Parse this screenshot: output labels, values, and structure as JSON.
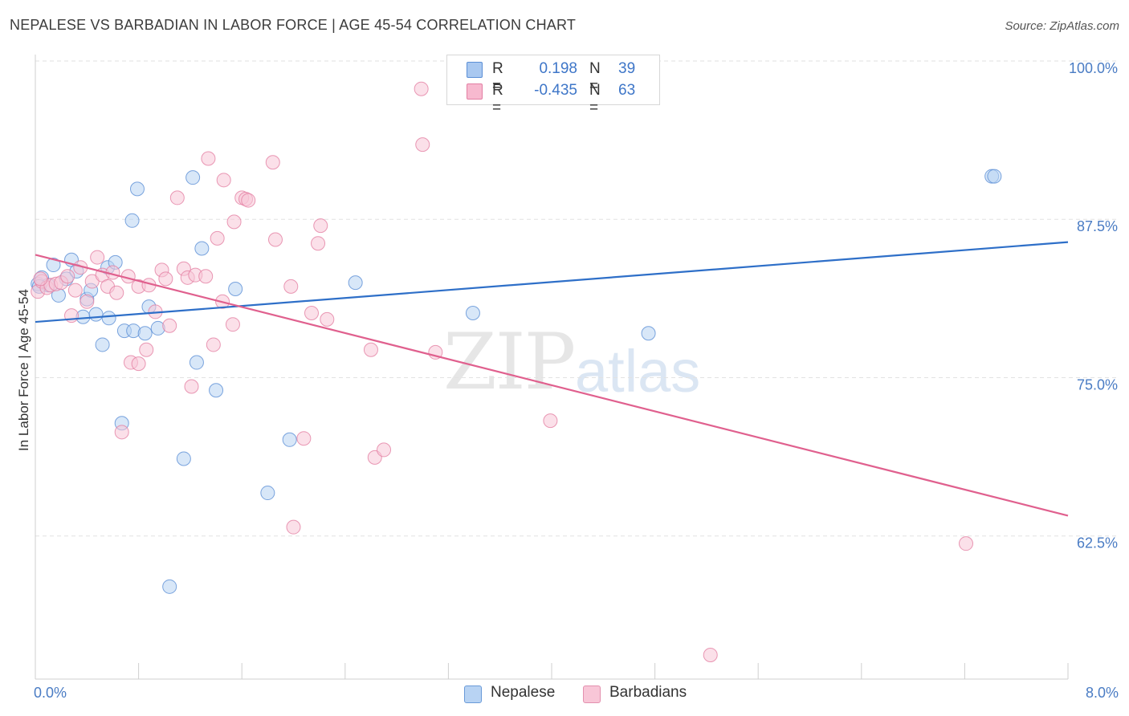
{
  "header": {
    "title": "NEPALESE VS BARBADIAN IN LABOR FORCE | AGE 45-54 CORRELATION CHART",
    "source": "Source: ZipAtlas.com"
  },
  "watermark": {
    "zip": "ZIP",
    "atlas": "atlas"
  },
  "legend_stats": [
    {
      "r_label": "R =",
      "r_value": "0.198",
      "n_label": "N =",
      "n_value": "39",
      "color": "#a9c8f0",
      "border": "#5b8fd6"
    },
    {
      "r_label": "R =",
      "r_value": "-0.435",
      "n_label": "N =",
      "n_value": "63",
      "color": "#f7b9cf",
      "border": "#e37fa3"
    }
  ],
  "bottom_legend": [
    {
      "label": "Nepalese",
      "color": "#b8d3f3",
      "border": "#6a9ad8"
    },
    {
      "label": "Barbadians",
      "color": "#f8c6d7",
      "border": "#e390ae"
    }
  ],
  "chart_data": {
    "type": "scatter",
    "title": "NEPALESE VS BARBADIAN IN LABOR FORCE | AGE 45-54 CORRELATION CHART",
    "xlabel": "",
    "ylabel": "In Labor Force | Age 45-54",
    "xlim": [
      0,
      8
    ],
    "ylim": [
      51.2,
      100
    ],
    "x_tick_labels": [
      "0.0%",
      "8.0%"
    ],
    "y_ticks": [
      62.5,
      75.0,
      87.5,
      100.0
    ],
    "y_tick_labels": [
      "62.5%",
      "75.0%",
      "87.5%",
      "100.0%"
    ],
    "grid": "horizontal dashed",
    "series": [
      {
        "name": "Nepalese",
        "color": "#5b8fd6",
        "fill": "#b8d3f3",
        "trend": {
          "x": [
            0,
            8
          ],
          "y": [
            79.4,
            85.7
          ]
        },
        "points": [
          [
            0.02,
            82.4
          ],
          [
            0.05,
            82.9
          ],
          [
            0.1,
            82.3
          ],
          [
            0.14,
            83.9
          ],
          [
            0.18,
            81.5
          ],
          [
            0.24,
            82.8
          ],
          [
            0.28,
            84.3
          ],
          [
            0.32,
            83.4
          ],
          [
            0.37,
            79.8
          ],
          [
            0.4,
            81.2
          ],
          [
            0.43,
            81.9
          ],
          [
            0.47,
            80.0
          ],
          [
            0.52,
            77.6
          ],
          [
            0.56,
            83.7
          ],
          [
            0.57,
            79.7
          ],
          [
            0.62,
            84.1
          ],
          [
            0.67,
            71.4
          ],
          [
            0.69,
            78.7
          ],
          [
            0.76,
            78.7
          ],
          [
            0.75,
            87.4
          ],
          [
            0.79,
            89.9
          ],
          [
            0.85,
            78.5
          ],
          [
            0.88,
            80.6
          ],
          [
            0.95,
            78.9
          ],
          [
            1.04,
            58.5
          ],
          [
            1.15,
            68.6
          ],
          [
            1.22,
            90.8
          ],
          [
            1.25,
            76.2
          ],
          [
            1.29,
            85.2
          ],
          [
            1.4,
            74.0
          ],
          [
            1.55,
            82.0
          ],
          [
            1.8,
            65.9
          ],
          [
            1.97,
            70.1
          ],
          [
            2.48,
            82.5
          ],
          [
            3.39,
            80.1
          ],
          [
            4.75,
            78.5
          ],
          [
            7.41,
            90.9
          ],
          [
            7.43,
            90.9
          ],
          [
            0.03,
            82.2
          ]
        ]
      },
      {
        "name": "Barbadians",
        "color": "#e37fa3",
        "fill": "#f8c6d7",
        "trend": {
          "x": [
            0,
            8
          ],
          "y": [
            84.7,
            64.1
          ]
        },
        "points": [
          [
            0.02,
            81.8
          ],
          [
            0.05,
            82.6
          ],
          [
            0.09,
            82.1
          ],
          [
            0.12,
            82.3
          ],
          [
            0.16,
            82.4
          ],
          [
            0.2,
            82.5
          ],
          [
            0.25,
            83.0
          ],
          [
            0.28,
            79.9
          ],
          [
            0.31,
            81.9
          ],
          [
            0.35,
            83.7
          ],
          [
            0.4,
            81.0
          ],
          [
            0.44,
            82.6
          ],
          [
            0.48,
            84.5
          ],
          [
            0.52,
            83.1
          ],
          [
            0.56,
            82.2
          ],
          [
            0.6,
            83.3
          ],
          [
            0.63,
            81.7
          ],
          [
            0.67,
            70.7
          ],
          [
            0.72,
            83.0
          ],
          [
            0.74,
            76.2
          ],
          [
            0.8,
            82.2
          ],
          [
            0.8,
            76.1
          ],
          [
            0.86,
            77.2
          ],
          [
            0.88,
            82.3
          ],
          [
            0.93,
            80.2
          ],
          [
            0.98,
            83.5
          ],
          [
            1.01,
            82.8
          ],
          [
            1.04,
            79.1
          ],
          [
            1.1,
            89.2
          ],
          [
            1.15,
            83.6
          ],
          [
            1.18,
            82.9
          ],
          [
            1.21,
            74.3
          ],
          [
            1.24,
            83.1
          ],
          [
            1.32,
            83.0
          ],
          [
            1.34,
            92.3
          ],
          [
            1.38,
            77.6
          ],
          [
            1.41,
            86.0
          ],
          [
            1.45,
            81.0
          ],
          [
            1.46,
            90.6
          ],
          [
            1.53,
            79.2
          ],
          [
            1.54,
            87.3
          ],
          [
            1.6,
            89.2
          ],
          [
            1.63,
            89.1
          ],
          [
            1.65,
            89.0
          ],
          [
            1.84,
            92.0
          ],
          [
            1.86,
            85.9
          ],
          [
            1.98,
            82.2
          ],
          [
            2.0,
            63.2
          ],
          [
            2.08,
            70.2
          ],
          [
            2.14,
            80.1
          ],
          [
            2.19,
            85.6
          ],
          [
            2.21,
            87.0
          ],
          [
            2.26,
            79.6
          ],
          [
            2.6,
            77.2
          ],
          [
            2.63,
            68.7
          ],
          [
            2.7,
            69.3
          ],
          [
            2.99,
            97.8
          ],
          [
            3.0,
            93.4
          ],
          [
            3.1,
            77.0
          ],
          [
            3.99,
            71.6
          ],
          [
            5.23,
            53.1
          ],
          [
            7.21,
            61.9
          ],
          [
            0.04,
            82.8
          ]
        ]
      }
    ]
  }
}
